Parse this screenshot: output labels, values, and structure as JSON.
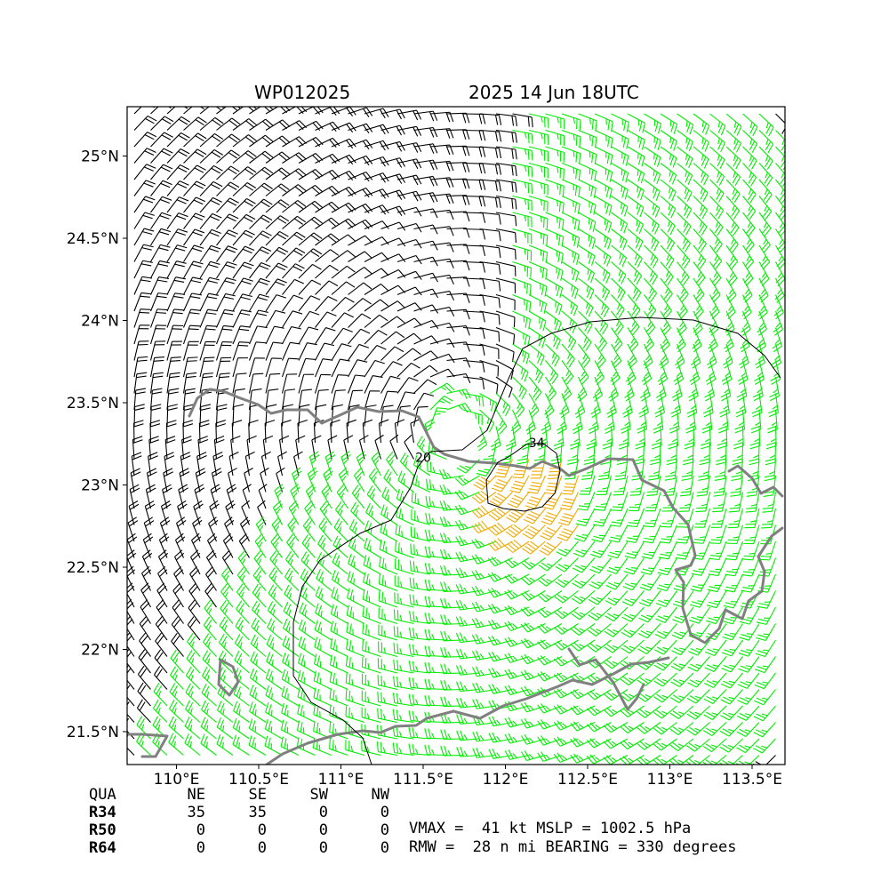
{
  "header": {
    "storm_id": "WP012025",
    "datetime": "2025 14 Jun 18UTC"
  },
  "map": {
    "lon_range": [
      109.7,
      113.7
    ],
    "lat_range": [
      21.3,
      25.3
    ],
    "lon_ticks": [
      {
        "value": 110.0,
        "label": "110°E"
      },
      {
        "value": 110.5,
        "label": "110.5°E"
      },
      {
        "value": 111.0,
        "label": "111°E"
      },
      {
        "value": 111.5,
        "label": "111.5°E"
      },
      {
        "value": 112.0,
        "label": "112°E"
      },
      {
        "value": 112.5,
        "label": "112.5°E"
      },
      {
        "value": 113.0,
        "label": "113°E"
      },
      {
        "value": 113.5,
        "label": "113.5°E"
      }
    ],
    "lat_ticks": [
      {
        "value": 21.5,
        "label": "21.5°N"
      },
      {
        "value": 22.0,
        "label": "22°N"
      },
      {
        "value": 22.5,
        "label": "22.5°N"
      },
      {
        "value": 23.0,
        "label": "23°N"
      },
      {
        "value": 23.5,
        "label": "23.5°N"
      },
      {
        "value": 24.0,
        "label": "24°N"
      },
      {
        "value": 24.5,
        "label": "24.5°N"
      },
      {
        "value": 25.0,
        "label": "25°N"
      }
    ],
    "storm_center": {
      "lon": 111.7,
      "lat": 23.3
    },
    "rmw_nmi": 28,
    "wind_categories": {
      "black": "below 34 kt",
      "green": "34 to 49 kt",
      "orange": "50 kt and above"
    },
    "colors": {
      "calm_barbs": "#000000",
      "r34_barbs": "#00ee00",
      "r50_barbs": "#eeaa00",
      "coastline": "#808080",
      "contours": "#000000"
    },
    "contours": [
      {
        "label": "20",
        "label_lon": 111.5,
        "label_lat": 23.14
      },
      {
        "label": "34",
        "label_lon": 112.19,
        "label_lat": 23.23
      }
    ]
  },
  "wind_radii": {
    "header": [
      "QUA",
      "NE",
      "SE",
      "SW",
      "NW"
    ],
    "rows": [
      {
        "name": "R34",
        "values": [
          "35",
          "35",
          "0",
          "0"
        ]
      },
      {
        "name": "R50",
        "values": [
          "0",
          "0",
          "0",
          "0"
        ]
      },
      {
        "name": "R64",
        "values": [
          "0",
          "0",
          "0",
          "0"
        ]
      }
    ]
  },
  "stats": {
    "line1": "VMAX =  41 kt MSLP = 1002.5 hPa",
    "line2": "RMW =  28 n mi BEARING = 330 degrees"
  }
}
